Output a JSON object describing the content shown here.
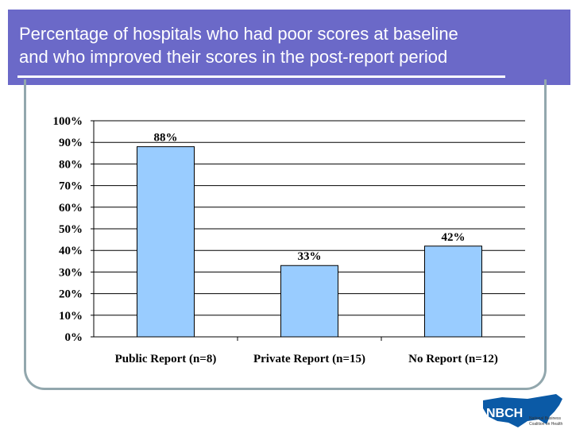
{
  "slide": {
    "title_line1": "Percentage of hospitals who had poor scores at baseline",
    "title_line2": "and who improved their scores in the post-report period",
    "band_color": "#6b69c8",
    "frame_color": "#92a7ad"
  },
  "logo": {
    "mark": "NBCH",
    "caption_line1": "National Business",
    "caption_line2": "Coalition on Health",
    "color": "#0b5aa6"
  },
  "chart_data": {
    "type": "bar",
    "categories": [
      "Public Report (n=8)",
      "Private Report (n=15)",
      "No Report (n=12)"
    ],
    "values": [
      88,
      33,
      42
    ],
    "value_labels": [
      "88%",
      "33%",
      "42%"
    ],
    "y_ticks": [
      "0%",
      "10%",
      "20%",
      "30%",
      "40%",
      "50%",
      "60%",
      "70%",
      "80%",
      "90%",
      "100%"
    ],
    "ylim": [
      0,
      100
    ],
    "grid": true,
    "title": "",
    "xlabel": "",
    "ylabel": "",
    "bar_color": "#99ccff",
    "bar_border": "#000000",
    "grid_color": "#000000"
  }
}
